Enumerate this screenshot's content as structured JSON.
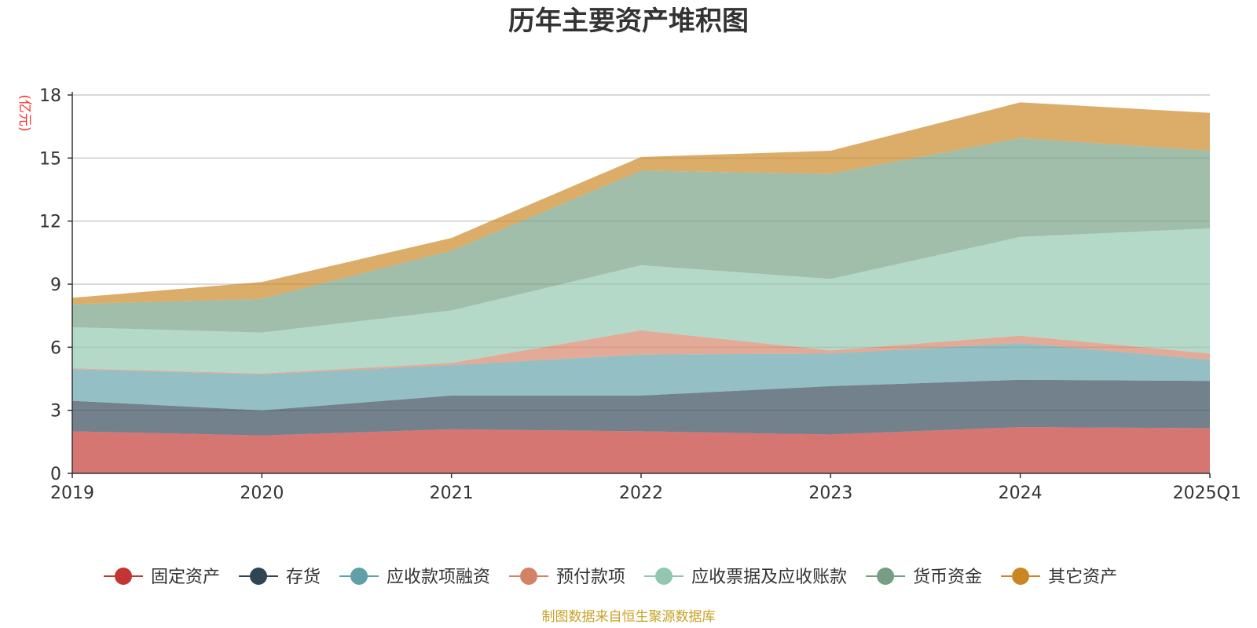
{
  "chart_data": {
    "type": "area",
    "stacked": true,
    "title": "历年主要资产堆积图",
    "unit_label": "(亿元)",
    "categories": [
      "2019",
      "2020",
      "2021",
      "2022",
      "2023",
      "2024",
      "2025Q1"
    ],
    "ylim": [
      0,
      18
    ],
    "yticks": [
      "0",
      "3",
      "6",
      "9",
      "12",
      "15",
      "18"
    ],
    "grid": true,
    "legend_position": "bottom",
    "series": [
      {
        "name": "固定资产",
        "color": "#c23531",
        "values": [
          2.0,
          1.8,
          2.1,
          2.0,
          1.85,
          2.2,
          2.15
        ]
      },
      {
        "name": "存货",
        "color": "#2f4554",
        "values": [
          1.45,
          1.2,
          1.6,
          1.7,
          2.3,
          2.25,
          2.25
        ]
      },
      {
        "name": "应收款项融资",
        "color": "#61a0a8",
        "values": [
          1.5,
          1.7,
          1.45,
          1.95,
          1.55,
          1.75,
          1.0
        ]
      },
      {
        "name": "预付款项",
        "color": "#d48265",
        "values": [
          0.05,
          0.05,
          0.1,
          1.15,
          0.15,
          0.35,
          0.3
        ]
      },
      {
        "name": "应收票据及应收账款",
        "color": "#91c7ae",
        "values": [
          1.95,
          1.95,
          2.5,
          3.1,
          3.4,
          4.7,
          5.95
        ]
      },
      {
        "name": "货币资金",
        "color": "#749f83",
        "values": [
          1.1,
          1.6,
          2.85,
          4.5,
          5.0,
          4.7,
          3.7
        ]
      },
      {
        "name": "其它资产",
        "color": "#ca8622",
        "values": [
          0.3,
          0.8,
          0.6,
          0.65,
          1.1,
          1.7,
          1.8
        ]
      }
    ],
    "source": "制图数据来自恒生聚源数据库"
  }
}
